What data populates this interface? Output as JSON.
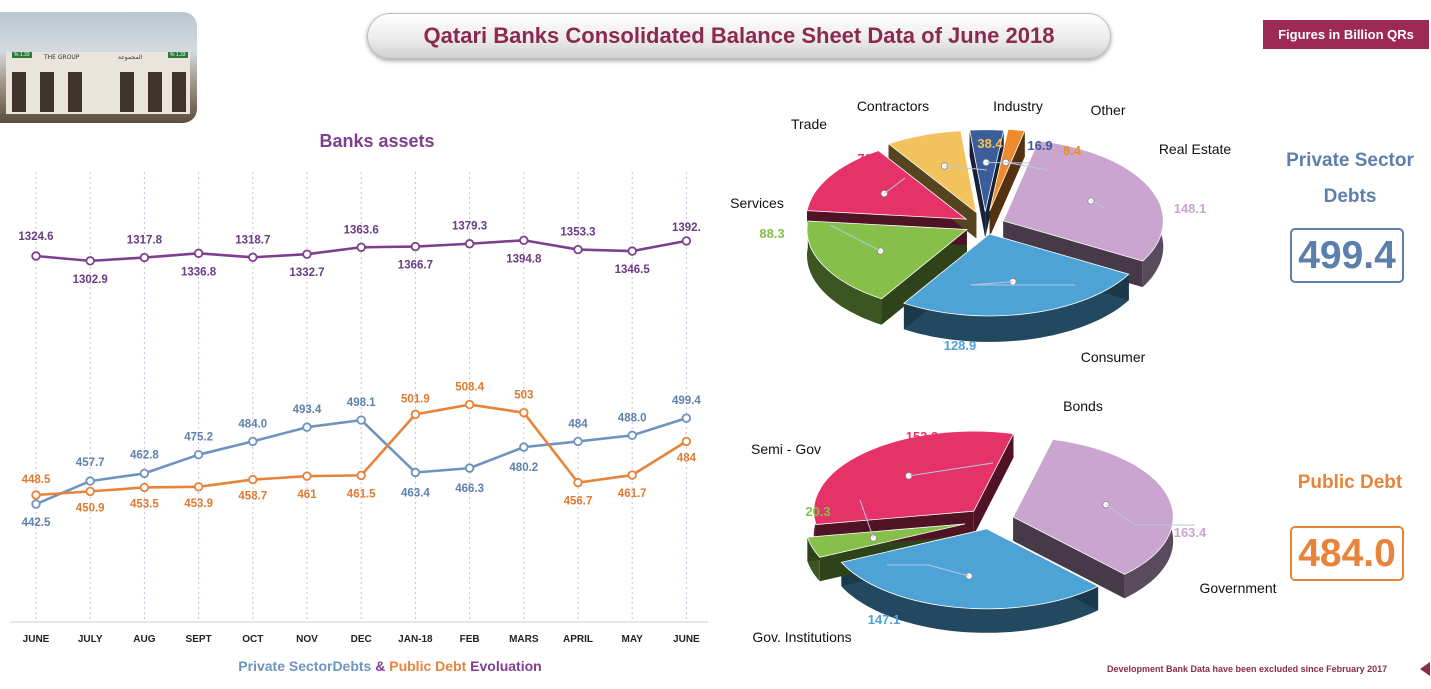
{
  "header": {
    "title": "Qatari Banks Consolidated Balance Sheet Data of June 2018",
    "figures_badge": "Figures in Billion QRs"
  },
  "photo": {
    "sign_left": "THE GROUP",
    "sign_right": "المجموعة",
    "ticker_left": "% 1.33",
    "ticker_right": "% 1.33"
  },
  "colors": {
    "assets": "#7e3f8f",
    "private": "#6f93bf",
    "public": "#e8833a",
    "accent": "#9c2a55"
  },
  "private_summary": {
    "title_line1": "Private Sector",
    "title_line2": "Debts",
    "value": "499.4"
  },
  "public_summary": {
    "title": "Public Debt",
    "value": "484.0"
  },
  "footnote": "Development Bank Data have been excluded since February 2017",
  "chart_data": [
    {
      "type": "line",
      "title": "Banks assets",
      "categories": [
        "JUNE",
        "JULY",
        "AUG",
        "SEPT",
        "OCT",
        "NOV",
        "DEC",
        "JAN-18",
        "FEB",
        "MARS",
        "APRIL",
        "MAY",
        "JUNE"
      ],
      "series": [
        {
          "name": "",
          "values": [
            1324.6,
            1302.9,
            1317.8,
            1336.8,
            1318.7,
            1332.7,
            1363.6,
            1366.7,
            1379.3,
            1394.8,
            1353.3,
            1346.5,
            1392
          ],
          "labels": [
            "1324.6",
            "1302.9",
            "1317.8",
            "1336.8",
            "1318.7",
            "1332.7",
            "1363.6",
            "1366.7",
            "1379.3",
            "1394.8",
            "1353.3",
            "1346.5",
            "1392."
          ]
        }
      ]
    },
    {
      "type": "line",
      "title": "",
      "xlabel_parts": [
        "Private SectorDebts",
        " & ",
        "Public Debt",
        " Evoluation"
      ],
      "categories": [
        "JUNE",
        "JULY",
        "AUG",
        "SEPT",
        "OCT",
        "NOV",
        "DEC",
        "JAN-18",
        "FEB",
        "MARS",
        "APRIL",
        "MAY",
        "JUNE"
      ],
      "series": [
        {
          "name": "Private SectorDebts",
          "values": [
            442.5,
            457.7,
            462.8,
            475.2,
            484.0,
            493.4,
            498.1,
            463.4,
            466.3,
            480.2,
            484,
            488.0,
            499.4
          ],
          "labels": [
            "442.5",
            "457.7",
            "462.8",
            "475.2",
            "484.0",
            "493.4",
            "498.1",
            "463.4",
            "466.3",
            "480.2",
            "484",
            "488.0",
            "499.4"
          ]
        },
        {
          "name": "Public Debt",
          "values": [
            448.5,
            450.9,
            453.5,
            453.9,
            458.7,
            461,
            461.5,
            501.9,
            508.4,
            503,
            456.7,
            461.7,
            484
          ],
          "labels": [
            "448.5",
            "450.9",
            "453.5",
            "453.9",
            "458.7",
            "461",
            "461.5",
            "501.9",
            "508.4",
            "503",
            "456.7",
            "461.7",
            "484"
          ]
        }
      ]
    },
    {
      "type": "pie",
      "title": "Private Sector Debts",
      "slices": [
        {
          "label": "Real Estate",
          "value": 148.1,
          "display": "148.1",
          "color": "#c9a5cf"
        },
        {
          "label": "Consumer",
          "value": 128.9,
          "display": "128.9",
          "color": "#4da3d6"
        },
        {
          "label": "Services",
          "value": 88.3,
          "display": "88.3",
          "color": "#86c04a"
        },
        {
          "label": "Trade",
          "value": 70.5,
          "display": "70.5",
          "color": "#e5336a"
        },
        {
          "label": "Contractors",
          "value": 38.4,
          "display": "38.4",
          "color": "#f2c35c"
        },
        {
          "label": "Industry",
          "value": 16.9,
          "display": "16.9",
          "color": "#3b5d99"
        },
        {
          "label": "Other",
          "value": 8.4,
          "display": "8.4",
          "color": "#ef8b2c"
        }
      ]
    },
    {
      "type": "pie",
      "title": "Public Debt",
      "slices": [
        {
          "label": "Government",
          "value": 163.4,
          "display": "163.4",
          "color": "#c9a5cf"
        },
        {
          "label": "Gov. Institutions",
          "value": 147.1,
          "display": "147.1",
          "color": "#4da3d6"
        },
        {
          "label": "Semi - Gov",
          "value": 20.3,
          "display": "20.3",
          "color": "#86c04a"
        },
        {
          "label": "Bonds",
          "value": 153.3,
          "display": "153.3",
          "color": "#e5336a"
        }
      ]
    }
  ]
}
